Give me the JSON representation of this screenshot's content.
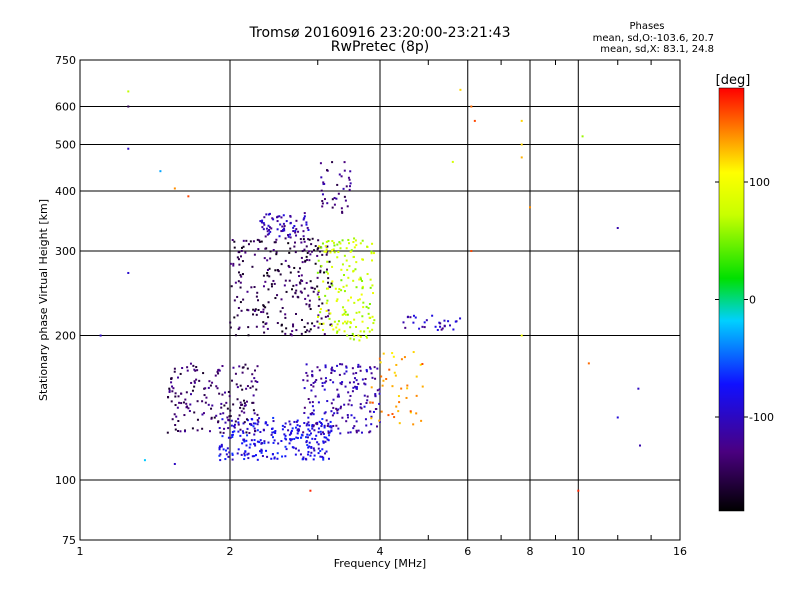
{
  "chart_data": {
    "type": "scatter",
    "title": "Tromsø 20160916 23:20:00-23:21:43",
    "subtitle": "RwPretec (8p)",
    "xlabel": "Frequency [MHz]",
    "ylabel": "Stationary phase Virtual Height [km]",
    "x_scale": "log",
    "y_scale": "log",
    "xlim": [
      1,
      16
    ],
    "ylim": [
      75,
      750
    ],
    "x_ticks": [
      1,
      2,
      4,
      6,
      8,
      10,
      16
    ],
    "y_ticks": [
      75,
      100,
      200,
      300,
      400,
      500,
      600,
      750
    ],
    "grid": true,
    "colorbar": {
      "label": "[deg]",
      "range": [
        -180,
        180
      ],
      "ticks": [
        100,
        0,
        -100
      ]
    },
    "stats": {
      "heading": "Phases",
      "line1": "mean, sd,O:-103.6, 20.7",
      "line2": "mean, sd,X:  83.1, 24.8"
    },
    "clusters": [
      {
        "name": "low E region",
        "x_range": [
          1.9,
          3.2
        ],
        "y_range": [
          110,
          135
        ],
        "phase": -85,
        "n": 260
      },
      {
        "name": "lower F trace",
        "x_range": [
          1.5,
          2.3
        ],
        "y_range": [
          125,
          175
        ],
        "phase": -140,
        "n": 180
      },
      {
        "name": "Es trace",
        "x_range": [
          2.8,
          4.0
        ],
        "y_range": [
          125,
          175
        ],
        "phase": -110,
        "n": 180
      },
      {
        "name": "F layer (O)",
        "x_range": [
          2.0,
          3.2
        ],
        "y_range": [
          200,
          320
        ],
        "phase": -150,
        "n": 260
      },
      {
        "name": "F layer (X)",
        "x_range": [
          3.0,
          3.9
        ],
        "y_range": [
          195,
          320
        ],
        "phase": 75,
        "n": 170
      },
      {
        "name": "upper cusp",
        "x_range": [
          2.3,
          2.9
        ],
        "y_range": [
          320,
          360
        ],
        "phase": -110,
        "n": 70
      },
      {
        "name": "F2 spread",
        "x_range": [
          3.0,
          3.5
        ],
        "y_range": [
          360,
          460
        ],
        "phase": -130,
        "n": 40
      },
      {
        "name": "oblique trace",
        "x_range": [
          4.4,
          5.8
        ],
        "y_range": [
          205,
          220
        ],
        "phase": -105,
        "n": 30
      },
      {
        "name": "X high freq",
        "x_range": [
          3.8,
          4.9
        ],
        "y_range": [
          130,
          185
        ],
        "phase": 135,
        "n": 45
      }
    ],
    "sparse_points": [
      [
        1.1,
        200,
        -100
      ],
      [
        1.25,
        270,
        -95
      ],
      [
        1.25,
        490,
        -100
      ],
      [
        1.25,
        600,
        -150
      ],
      [
        1.25,
        645,
        70
      ],
      [
        1.45,
        440,
        -30
      ],
      [
        1.55,
        405,
        140
      ],
      [
        1.35,
        110,
        -20
      ],
      [
        1.55,
        108,
        -100
      ],
      [
        1.65,
        390,
        160
      ],
      [
        2.9,
        95,
        170
      ],
      [
        6.1,
        600,
        150
      ],
      [
        6.2,
        560,
        160
      ],
      [
        7.7,
        560,
        120
      ],
      [
        7.7,
        500,
        120
      ],
      [
        7.7,
        470,
        130
      ],
      [
        10.0,
        95,
        170
      ],
      [
        10.2,
        520,
        60
      ],
      [
        12.0,
        335,
        -110
      ],
      [
        13.2,
        155,
        -100
      ],
      [
        12.0,
        135,
        -90
      ],
      [
        13.3,
        118,
        -110
      ],
      [
        5.6,
        460,
        80
      ],
      [
        5.8,
        650,
        120
      ],
      [
        8.0,
        370,
        140
      ],
      [
        6.1,
        300,
        160
      ],
      [
        7.7,
        200,
        100
      ],
      [
        10.5,
        175,
        150
      ]
    ]
  }
}
